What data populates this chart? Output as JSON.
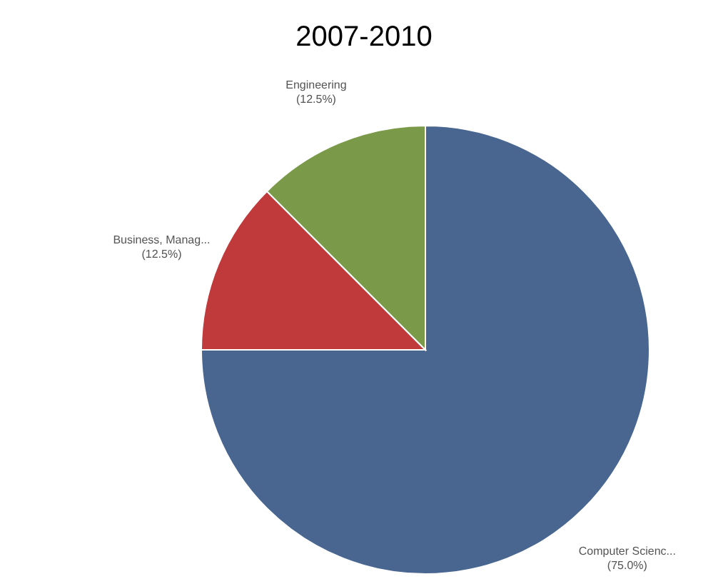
{
  "chart_data": {
    "type": "pie",
    "title": "2007-2010",
    "categories": [
      "Computer Scienc...",
      "Business, Manag...",
      "Engineering"
    ],
    "values": [
      75,
      12.5,
      12.5
    ],
    "value_labels": [
      "(75.0%)",
      "(12.5%)",
      "(12.5%)"
    ],
    "colors": [
      "#48668f",
      "#c0393b",
      "#7a9a4a"
    ]
  }
}
